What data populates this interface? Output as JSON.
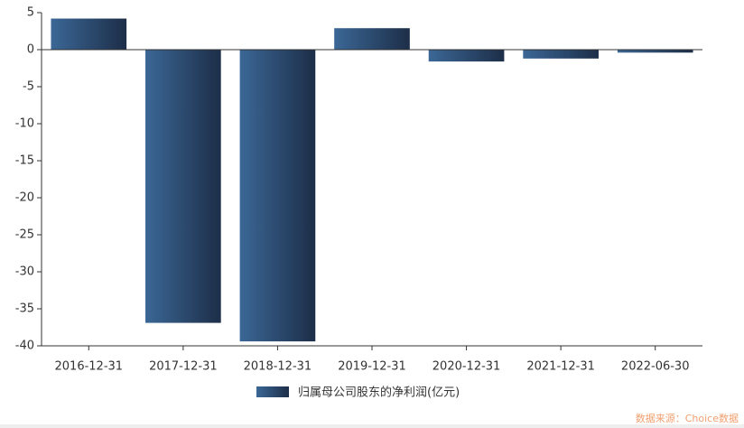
{
  "chart_data": {
    "type": "bar",
    "categories": [
      "2016-12-31",
      "2017-12-31",
      "2018-12-31",
      "2019-12-31",
      "2020-12-31",
      "2021-12-31",
      "2022-06-30"
    ],
    "series": [
      {
        "name": "归属母公司股东的净利润(亿元)",
        "color": "#2f4d75",
        "values": [
          4.2,
          -36.9,
          -39.4,
          2.9,
          -1.6,
          -1.2,
          -0.4
        ]
      }
    ],
    "ylim": [
      -40,
      5
    ],
    "yticks": [
      5,
      0,
      -5,
      -10,
      -15,
      -20,
      -25,
      -30,
      -35,
      -40
    ],
    "legend": "bottom",
    "source": "数据来源：Choice数据"
  }
}
